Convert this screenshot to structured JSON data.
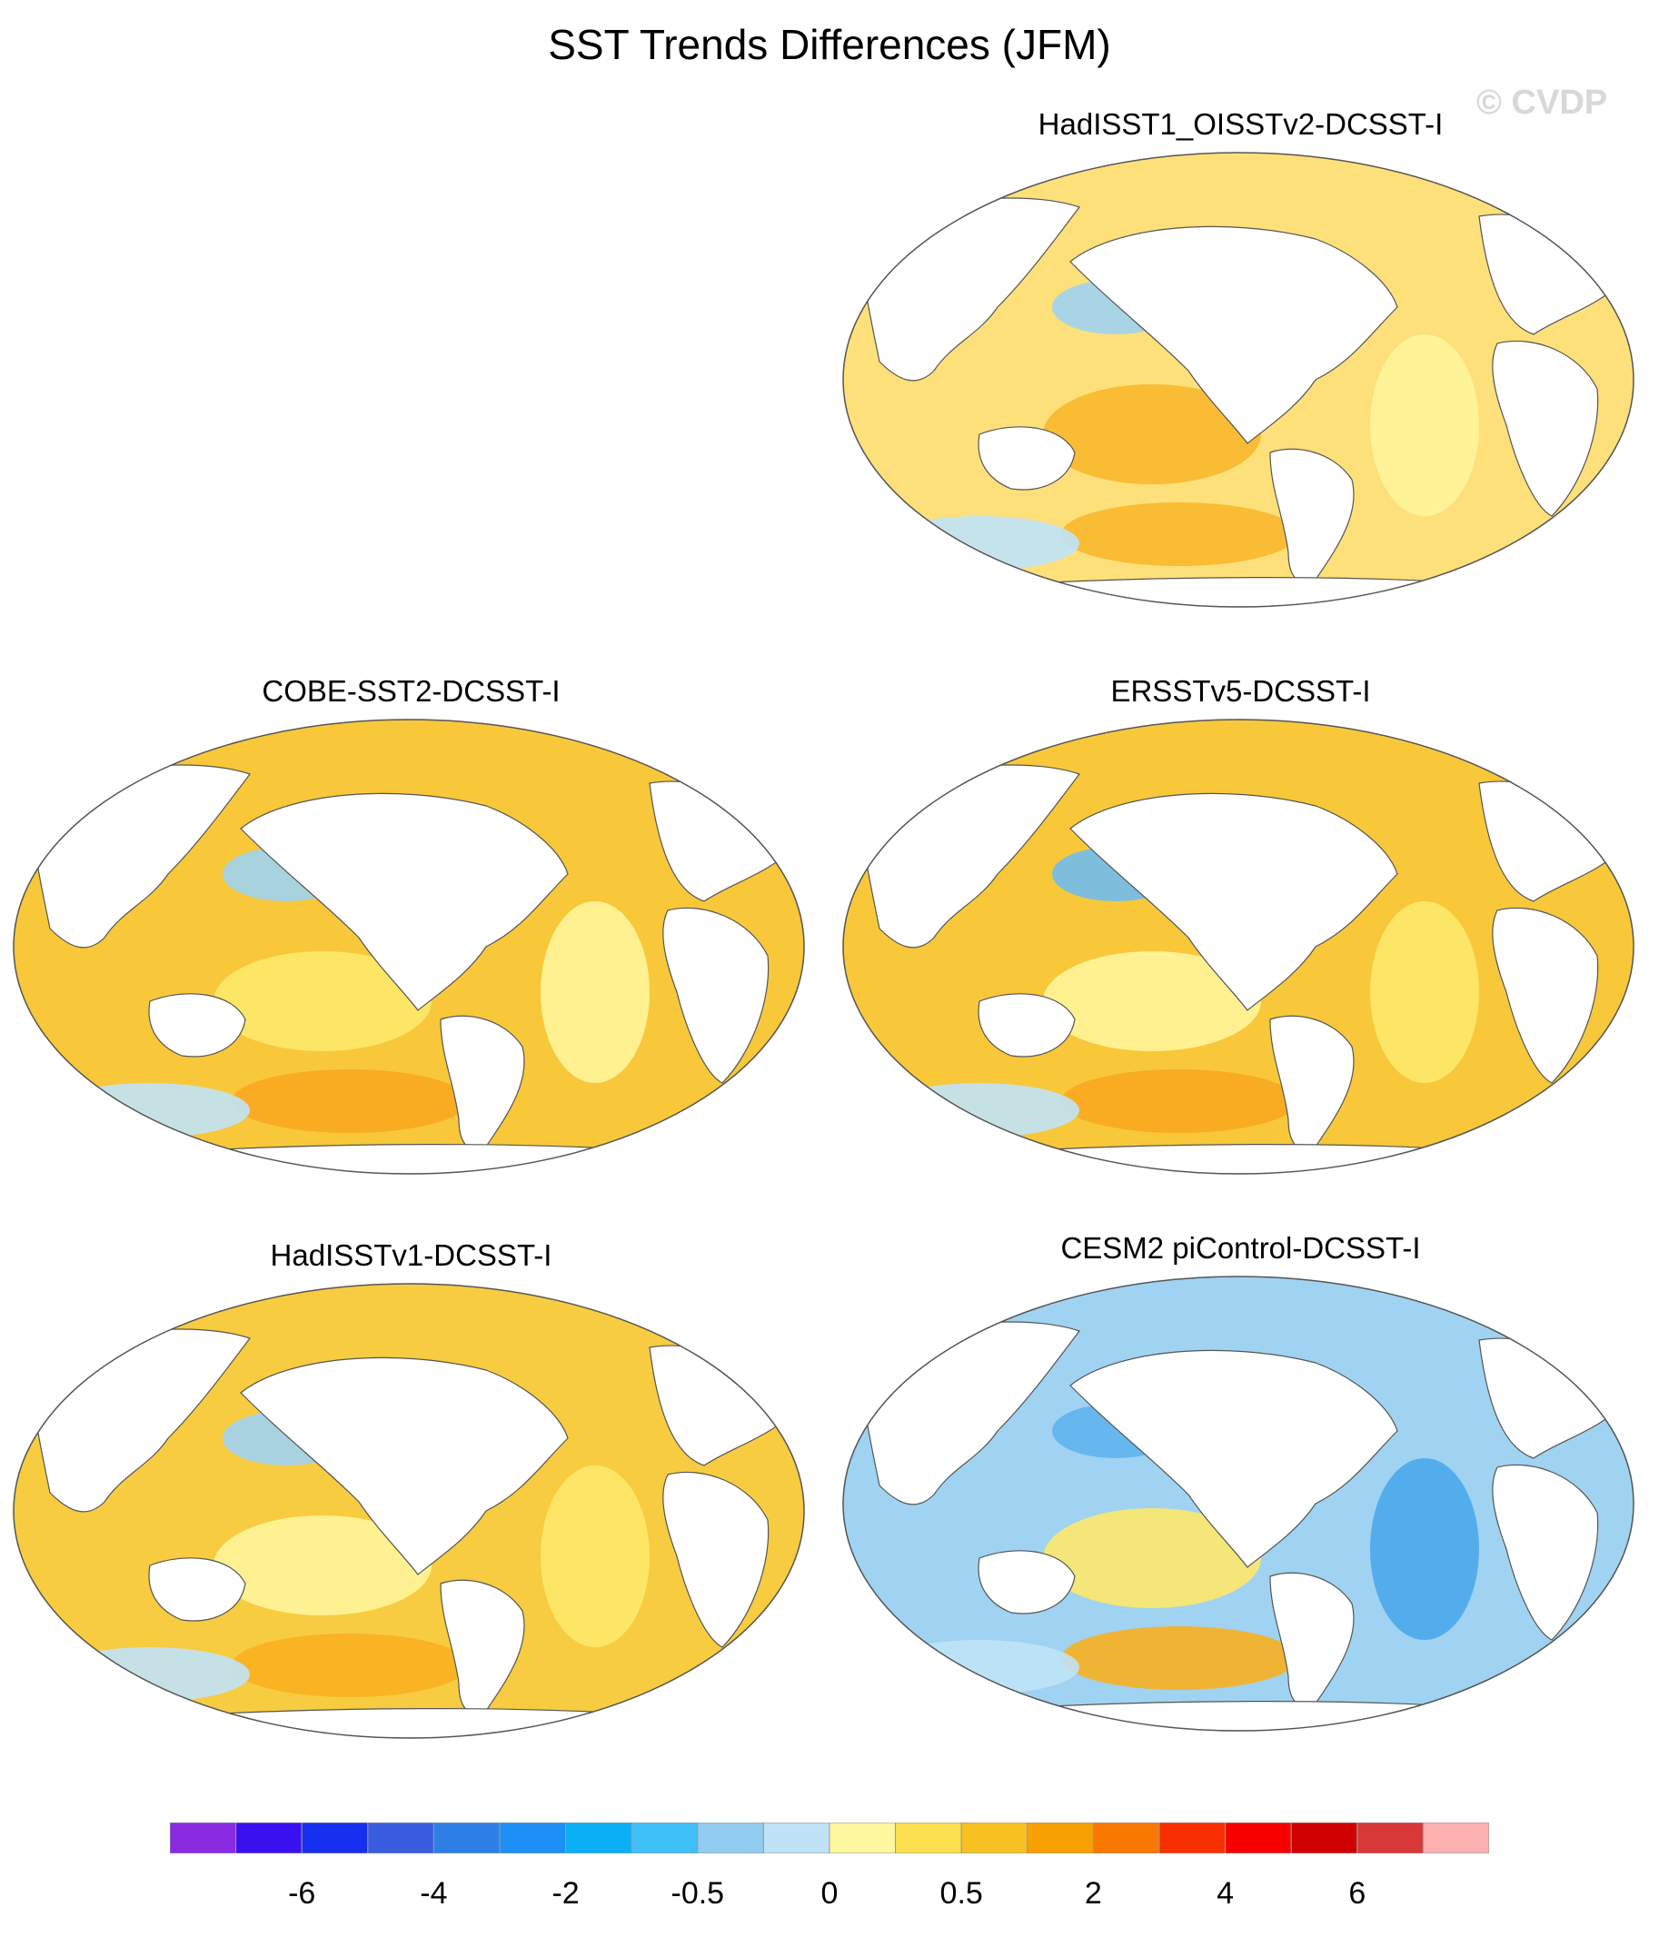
{
  "title": "SST Trends Differences (JFM)",
  "watermark": "© CVDP",
  "panels": [
    {
      "title": "HadISST1_OISSTv2-DCSST-I",
      "fill": "#fde07a",
      "patches": [
        "#f8b82c",
        "#9fd3f1",
        "#f8b82c",
        "#bfe3f7",
        "#fff59a"
      ]
    },
    {
      "title": "COBE-SST2-DCSST-I",
      "fill": "#f8c83a",
      "patches": [
        "#fde86a",
        "#9fd3f1",
        "#f8a820",
        "#bfe3f7",
        "#fff59a"
      ]
    },
    {
      "title": "ERSSTv5-DCSST-I",
      "fill": "#f8c83a",
      "patches": [
        "#fff59a",
        "#6fbcf0",
        "#f8a820",
        "#bfe3f7",
        "#fde86a"
      ]
    },
    {
      "title": "HadISSTv1-DCSST-I",
      "fill": "#f8cc40",
      "patches": [
        "#fff59a",
        "#9fd3f1",
        "#f8b020",
        "#bfe3f7",
        "#fde86a"
      ]
    },
    {
      "title": "CESM2 piControl-DCSST-I",
      "fill": "#9fd3f1",
      "patches": [
        "#fde86a",
        "#5fb4ee",
        "#f8b020",
        "#bfe3f7",
        "#4aa8ec"
      ]
    }
  ],
  "colorbar": {
    "colors": [
      "#8a2be2",
      "#3a10f0",
      "#1530f0",
      "#3a5de0",
      "#2e7ee8",
      "#1e90f5",
      "#0ab0f5",
      "#40c0f8",
      "#92ccf0",
      "#bfe2f7",
      "#fff6a0",
      "#fde050",
      "#f8c020",
      "#f8a000",
      "#f87800",
      "#f83000",
      "#f80000",
      "#d00000",
      "#d83838",
      "#fcb0b0"
    ],
    "labels": [
      "-6",
      "-4",
      "-2",
      "-0.5",
      "0",
      "0.5",
      "2",
      "4",
      "6"
    ],
    "label_edges": [
      2,
      4,
      6,
      8,
      10,
      12,
      14,
      16,
      18
    ]
  }
}
